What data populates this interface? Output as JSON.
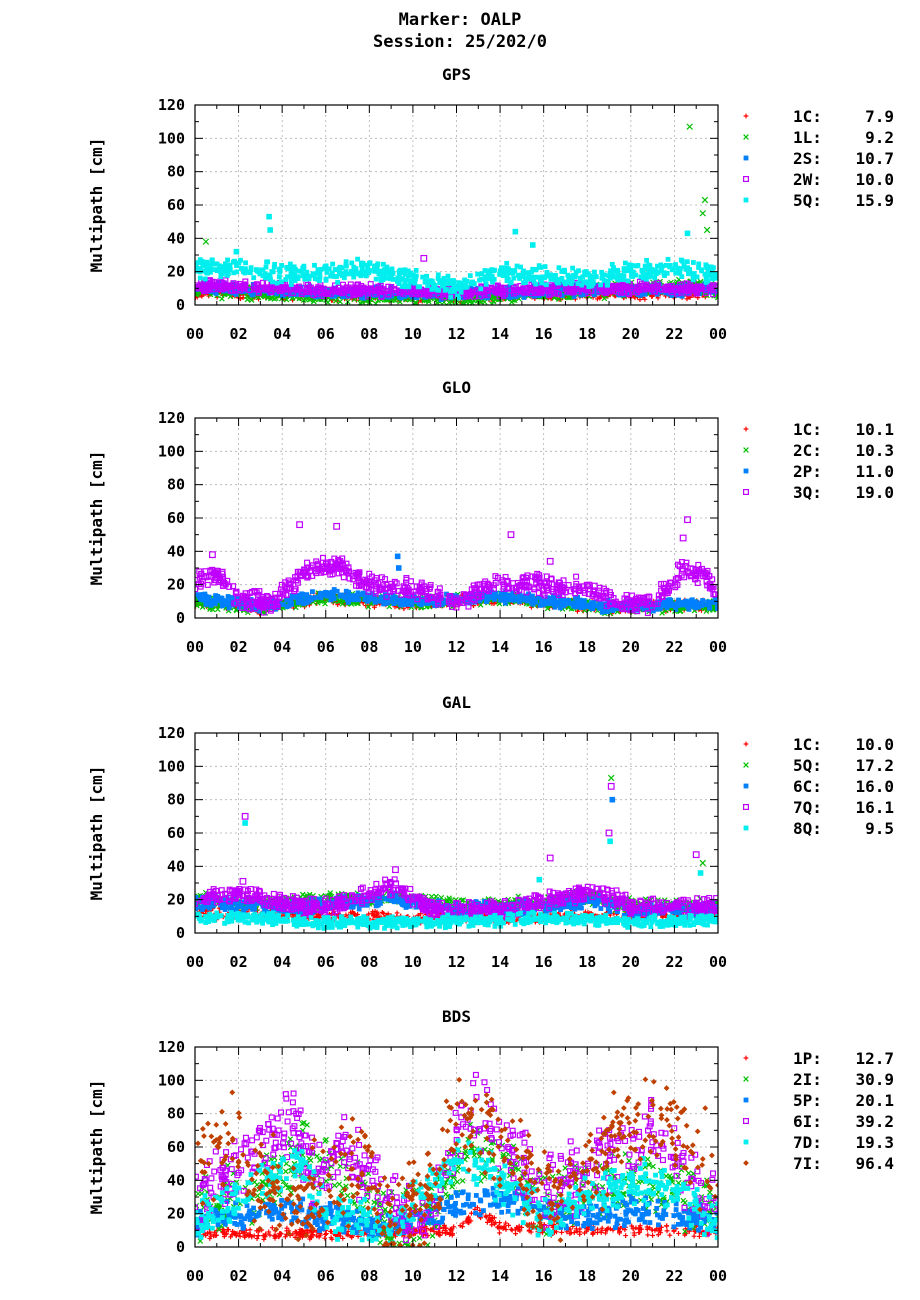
{
  "header": {
    "marker": "Marker: OALP",
    "session": "Session: 25/202/0"
  },
  "chart_data": [
    {
      "type": "scatter",
      "title": "GPS",
      "ylabel": "Multipath [cm]",
      "xlabel": "",
      "ylim": [
        0,
        120
      ],
      "xlim": [
        0,
        24
      ],
      "xticks": [
        "00",
        "02",
        "04",
        "06",
        "08",
        "10",
        "12",
        "14",
        "16",
        "18",
        "20",
        "22",
        "00"
      ],
      "yticks": [
        "0",
        "20",
        "40",
        "60",
        "80",
        "100",
        "120"
      ],
      "grid": true,
      "legend_position": "right",
      "series": [
        {
          "name": "1C:",
          "stat": "7.9",
          "marker": "plus",
          "color": "#ff0000"
        },
        {
          "name": "1L:",
          "stat": "9.2",
          "marker": "cross",
          "color": "#00c000"
        },
        {
          "name": "2S:",
          "stat": "10.7",
          "marker": "square",
          "color": "#0080ff"
        },
        {
          "name": "2W:",
          "stat": "10.0",
          "marker": "open-square",
          "color": "#c000ff"
        },
        {
          "name": "5Q:",
          "stat": "15.9",
          "marker": "square",
          "color": "#00eeee"
        }
      ],
      "outliers": [
        {
          "series": 1,
          "x": 22.7,
          "y": 107
        },
        {
          "series": 4,
          "x": 3.4,
          "y": 53
        },
        {
          "series": 4,
          "x": 3.45,
          "y": 45
        },
        {
          "series": 4,
          "x": 14.7,
          "y": 44
        },
        {
          "series": 4,
          "x": 15.5,
          "y": 36
        },
        {
          "series": 1,
          "x": 23.4,
          "y": 63
        },
        {
          "series": 1,
          "x": 23.3,
          "y": 55
        },
        {
          "series": 1,
          "x": 23.5,
          "y": 45
        },
        {
          "series": 1,
          "x": 0.5,
          "y": 38
        },
        {
          "series": 4,
          "x": 1.9,
          "y": 32
        },
        {
          "series": 4,
          "x": 22.6,
          "y": 43
        },
        {
          "series": 3,
          "x": 10.5,
          "y": 28
        }
      ]
    },
    {
      "type": "scatter",
      "title": "GLO",
      "ylabel": "Multipath [cm]",
      "xlabel": "",
      "ylim": [
        0,
        120
      ],
      "xlim": [
        0,
        24
      ],
      "xticks": [
        "00",
        "02",
        "04",
        "06",
        "08",
        "10",
        "12",
        "14",
        "16",
        "18",
        "20",
        "22",
        "00"
      ],
      "yticks": [
        "0",
        "20",
        "40",
        "60",
        "80",
        "100",
        "120"
      ],
      "grid": true,
      "legend_position": "right",
      "series": [
        {
          "name": "1C:",
          "stat": "10.1",
          "marker": "plus",
          "color": "#ff0000"
        },
        {
          "name": "2C:",
          "stat": "10.3",
          "marker": "cross",
          "color": "#00c000"
        },
        {
          "name": "2P:",
          "stat": "11.0",
          "marker": "square",
          "color": "#0080ff"
        },
        {
          "name": "3Q:",
          "stat": "19.0",
          "marker": "open-square",
          "color": "#c000ff"
        }
      ],
      "outliers": [
        {
          "series": 3,
          "x": 4.8,
          "y": 56
        },
        {
          "series": 3,
          "x": 6.5,
          "y": 55
        },
        {
          "series": 3,
          "x": 14.5,
          "y": 50
        },
        {
          "series": 3,
          "x": 22.6,
          "y": 59
        },
        {
          "series": 3,
          "x": 22.4,
          "y": 48
        },
        {
          "series": 2,
          "x": 9.3,
          "y": 37
        },
        {
          "series": 2,
          "x": 9.35,
          "y": 30
        },
        {
          "series": 3,
          "x": 0.8,
          "y": 38
        },
        {
          "series": 3,
          "x": 16.3,
          "y": 34
        }
      ]
    },
    {
      "type": "scatter",
      "title": "GAL",
      "ylabel": "Multipath [cm]",
      "xlabel": "",
      "ylim": [
        0,
        120
      ],
      "xlim": [
        0,
        24
      ],
      "xticks": [
        "00",
        "02",
        "04",
        "06",
        "08",
        "10",
        "12",
        "14",
        "16",
        "18",
        "20",
        "22",
        "00"
      ],
      "yticks": [
        "0",
        "20",
        "40",
        "60",
        "80",
        "100",
        "120"
      ],
      "grid": true,
      "legend_position": "right",
      "series": [
        {
          "name": "1C:",
          "stat": "10.0",
          "marker": "plus",
          "color": "#ff0000"
        },
        {
          "name": "5Q:",
          "stat": "17.2",
          "marker": "cross",
          "color": "#00c000"
        },
        {
          "name": "6C:",
          "stat": "16.0",
          "marker": "square",
          "color": "#0080ff"
        },
        {
          "name": "7Q:",
          "stat": "16.1",
          "marker": "open-square",
          "color": "#c000ff"
        },
        {
          "name": "8Q:",
          "stat": "9.5",
          "marker": "square",
          "color": "#00eeee"
        }
      ],
      "outliers": [
        {
          "series": 3,
          "x": 2.3,
          "y": 70
        },
        {
          "series": 4,
          "x": 2.3,
          "y": 66
        },
        {
          "series": 1,
          "x": 19.1,
          "y": 93
        },
        {
          "series": 3,
          "x": 19.1,
          "y": 88
        },
        {
          "series": 2,
          "x": 19.15,
          "y": 80
        },
        {
          "series": 3,
          "x": 19.0,
          "y": 60
        },
        {
          "series": 4,
          "x": 19.05,
          "y": 55
        },
        {
          "series": 3,
          "x": 16.3,
          "y": 45
        },
        {
          "series": 3,
          "x": 23.0,
          "y": 47
        },
        {
          "series": 1,
          "x": 23.3,
          "y": 42
        },
        {
          "series": 4,
          "x": 23.2,
          "y": 36
        },
        {
          "series": 3,
          "x": 9.2,
          "y": 38
        },
        {
          "series": 3,
          "x": 2.2,
          "y": 31
        },
        {
          "series": 4,
          "x": 15.8,
          "y": 32
        }
      ]
    },
    {
      "type": "scatter",
      "title": "BDS",
      "ylabel": "Multipath [cm]",
      "xlabel": "",
      "ylim": [
        0,
        120
      ],
      "xlim": [
        0,
        24
      ],
      "xticks": [
        "00",
        "02",
        "04",
        "06",
        "08",
        "10",
        "12",
        "14",
        "16",
        "18",
        "20",
        "22",
        "00"
      ],
      "yticks": [
        "0",
        "20",
        "40",
        "60",
        "80",
        "100",
        "120"
      ],
      "grid": true,
      "legend_position": "right",
      "series": [
        {
          "name": "1P:",
          "stat": "12.7",
          "marker": "plus",
          "color": "#ff0000"
        },
        {
          "name": "2I:",
          "stat": "30.9",
          "marker": "cross",
          "color": "#00c000"
        },
        {
          "name": "5P:",
          "stat": "20.1",
          "marker": "square",
          "color": "#0080ff"
        },
        {
          "name": "6I:",
          "stat": "39.2",
          "marker": "open-square",
          "color": "#c000ff"
        },
        {
          "name": "7D:",
          "stat": "19.3",
          "marker": "square",
          "color": "#00eeee"
        },
        {
          "name": "7I:",
          "stat": "96.4",
          "marker": "diamond",
          "color": "#c04000"
        }
      ],
      "outliers": []
    }
  ]
}
